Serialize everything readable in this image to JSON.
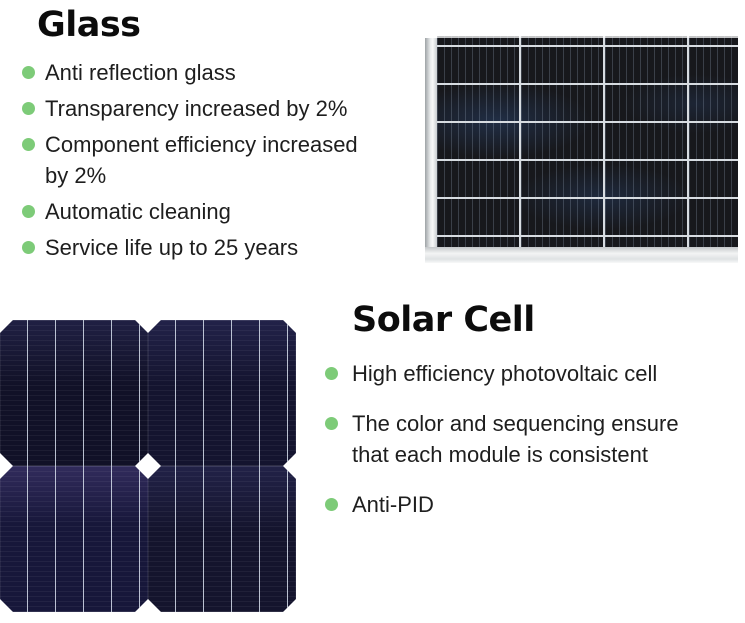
{
  "colors": {
    "bullet_green": "#7dcb78",
    "heading_text": "#0c0c0c",
    "body_text": "#1e1e1e",
    "panel_dark": "#17181c",
    "cell_navy": "#13132c"
  },
  "glass_section": {
    "title": "Glass",
    "items": [
      "Anti reflection glass",
      "Transparency increased by 2%",
      "Component efficiency increased\nby 2%",
      "Automatic cleaning",
      "Service life up to 25 years"
    ]
  },
  "solar_cell_section": {
    "title": "Solar Cell",
    "items": [
      "High efficiency photovoltaic cell",
      "The color and sequencing ensure\nthat each module is consistent",
      "Anti-PID"
    ]
  }
}
